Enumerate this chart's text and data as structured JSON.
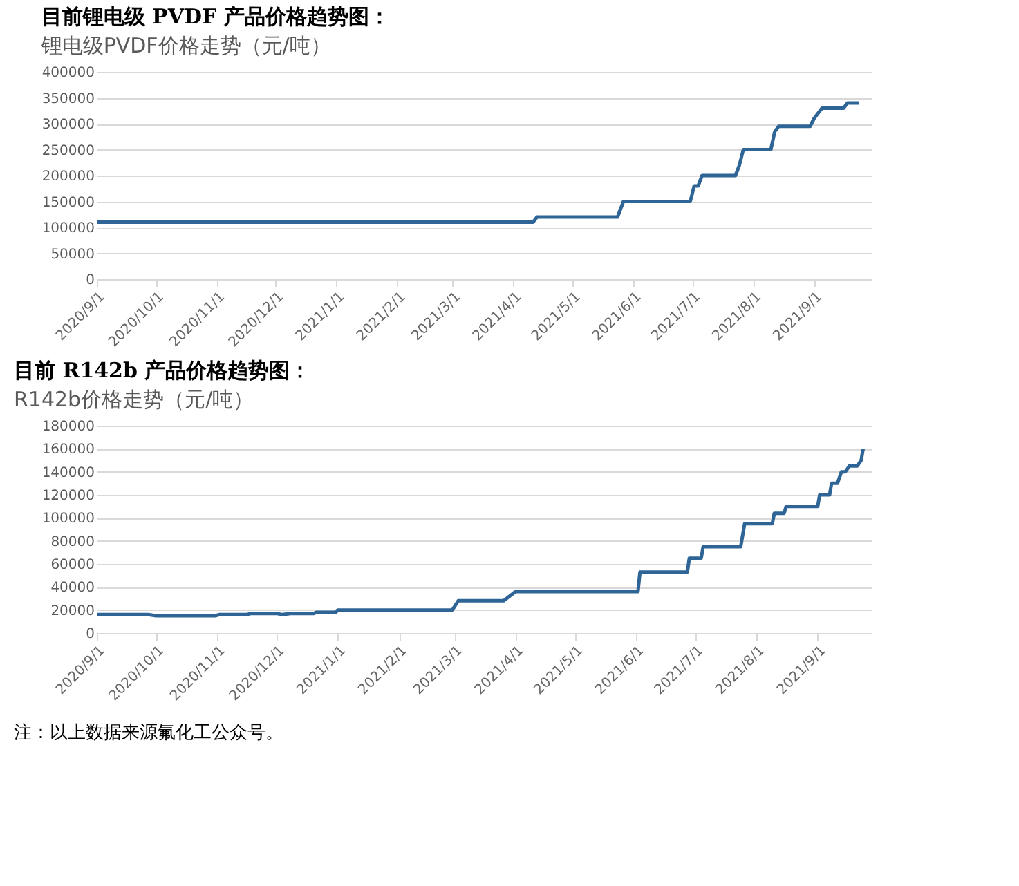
{
  "chart_data": [
    {
      "type": "line",
      "title": "目前锂电级 PVDF 产品价格趋势图：",
      "subtitle": "锂电级PVDF价格走势（元/吨）",
      "x": [
        "2020-09-01",
        "2021-04-11",
        "2021-04-13",
        "2021-05-24",
        "2021-05-27",
        "2021-06-30",
        "2021-07-02",
        "2021-07-04",
        "2021-07-06",
        "2021-07-23",
        "2021-07-25",
        "2021-07-27",
        "2021-08-10",
        "2021-08-12",
        "2021-08-14",
        "2021-08-30",
        "2021-09-01",
        "2021-09-05",
        "2021-09-16",
        "2021-09-18",
        "2021-09-24"
      ],
      "series": [
        {
          "color": "#2e6596",
          "values": [
            110000,
            110000,
            120000,
            120000,
            150000,
            150000,
            180000,
            180000,
            200000,
            200000,
            220000,
            250000,
            250000,
            285000,
            295000,
            295000,
            310000,
            330000,
            330000,
            340000,
            340000
          ]
        }
      ],
      "xlim": [
        "2020-09-01",
        "2021-09-30"
      ],
      "xticks": [
        {
          "value": "2020-09-01",
          "label": "2020/9/1"
        },
        {
          "value": "2020-10-01",
          "label": "2020/10/1"
        },
        {
          "value": "2020-11-01",
          "label": "2020/11/1"
        },
        {
          "value": "2020-12-01",
          "label": "2020/12/1"
        },
        {
          "value": "2021-01-01",
          "label": "2021/1/1"
        },
        {
          "value": "2021-02-01",
          "label": "2021/2/1"
        },
        {
          "value": "2021-03-01",
          "label": "2021/3/1"
        },
        {
          "value": "2021-04-01",
          "label": "2021/4/1"
        },
        {
          "value": "2021-05-01",
          "label": "2021/5/1"
        },
        {
          "value": "2021-06-01",
          "label": "2021/6/1"
        },
        {
          "value": "2021-07-01",
          "label": "2021/7/1"
        },
        {
          "value": "2021-08-01",
          "label": "2021/8/1"
        },
        {
          "value": "2021-09-01",
          "label": "2021/9/1"
        }
      ],
      "ylim": [
        0,
        400000
      ],
      "yticks": [
        0,
        50000,
        100000,
        150000,
        200000,
        250000,
        300000,
        350000,
        400000
      ],
      "grid": "y",
      "marker": "none",
      "line_style": "solid"
    },
    {
      "type": "line",
      "title": "目前 R142b 产品价格趋势图：",
      "subtitle": "R142b价格走势（元/吨）",
      "x": [
        "2020-09-01",
        "2020-09-27",
        "2020-10-01",
        "2020-10-31",
        "2020-11-02",
        "2020-11-16",
        "2020-11-18",
        "2020-12-01",
        "2020-12-04",
        "2020-12-08",
        "2020-12-20",
        "2020-12-21",
        "2020-12-31",
        "2021-01-01",
        "2021-02-28",
        "2021-03-03",
        "2021-03-26",
        "2021-04-01",
        "2021-06-02",
        "2021-06-03",
        "2021-06-27",
        "2021-06-28",
        "2021-07-04",
        "2021-07-05",
        "2021-07-24",
        "2021-07-26",
        "2021-08-09",
        "2021-08-10",
        "2021-08-15",
        "2021-08-16",
        "2021-09-01",
        "2021-09-02",
        "2021-09-07",
        "2021-09-08",
        "2021-09-11",
        "2021-09-13",
        "2021-09-15",
        "2021-09-17",
        "2021-09-21",
        "2021-09-23",
        "2021-09-24"
      ],
      "series": [
        {
          "color": "#2e6596",
          "values": [
            16000,
            16000,
            15000,
            15000,
            16000,
            16000,
            17000,
            17000,
            16000,
            17000,
            17000,
            18000,
            18000,
            20000,
            20000,
            28000,
            28000,
            36000,
            36000,
            53000,
            53000,
            65000,
            65000,
            75000,
            75000,
            95000,
            95000,
            104000,
            104000,
            110000,
            110000,
            120000,
            120000,
            130000,
            130000,
            140000,
            140000,
            145000,
            145000,
            150000,
            160000
          ]
        }
      ],
      "xlim": [
        "2020-09-01",
        "2021-09-28"
      ],
      "xticks": [
        {
          "value": "2020-09-01",
          "label": "2020/9/1"
        },
        {
          "value": "2020-10-01",
          "label": "2020/10/1"
        },
        {
          "value": "2020-11-01",
          "label": "2020/11/1"
        },
        {
          "value": "2020-12-01",
          "label": "2020/12/1"
        },
        {
          "value": "2021-01-01",
          "label": "2021/1/1"
        },
        {
          "value": "2021-02-01",
          "label": "2021/2/1"
        },
        {
          "value": "2021-03-01",
          "label": "2021/3/1"
        },
        {
          "value": "2021-04-01",
          "label": "2021/4/1"
        },
        {
          "value": "2021-05-01",
          "label": "2021/5/1"
        },
        {
          "value": "2021-06-01",
          "label": "2021/6/1"
        },
        {
          "value": "2021-07-01",
          "label": "2021/7/1"
        },
        {
          "value": "2021-08-01",
          "label": "2021/8/1"
        },
        {
          "value": "2021-09-01",
          "label": "2021/9/1"
        }
      ],
      "ylim": [
        0,
        180000
      ],
      "yticks": [
        0,
        20000,
        40000,
        60000,
        80000,
        100000,
        120000,
        140000,
        160000,
        180000
      ],
      "grid": "y",
      "marker": "none",
      "line_style": "solid",
      "annotations": [
        "注：以上数据来源氟化工公众号。"
      ]
    }
  ]
}
